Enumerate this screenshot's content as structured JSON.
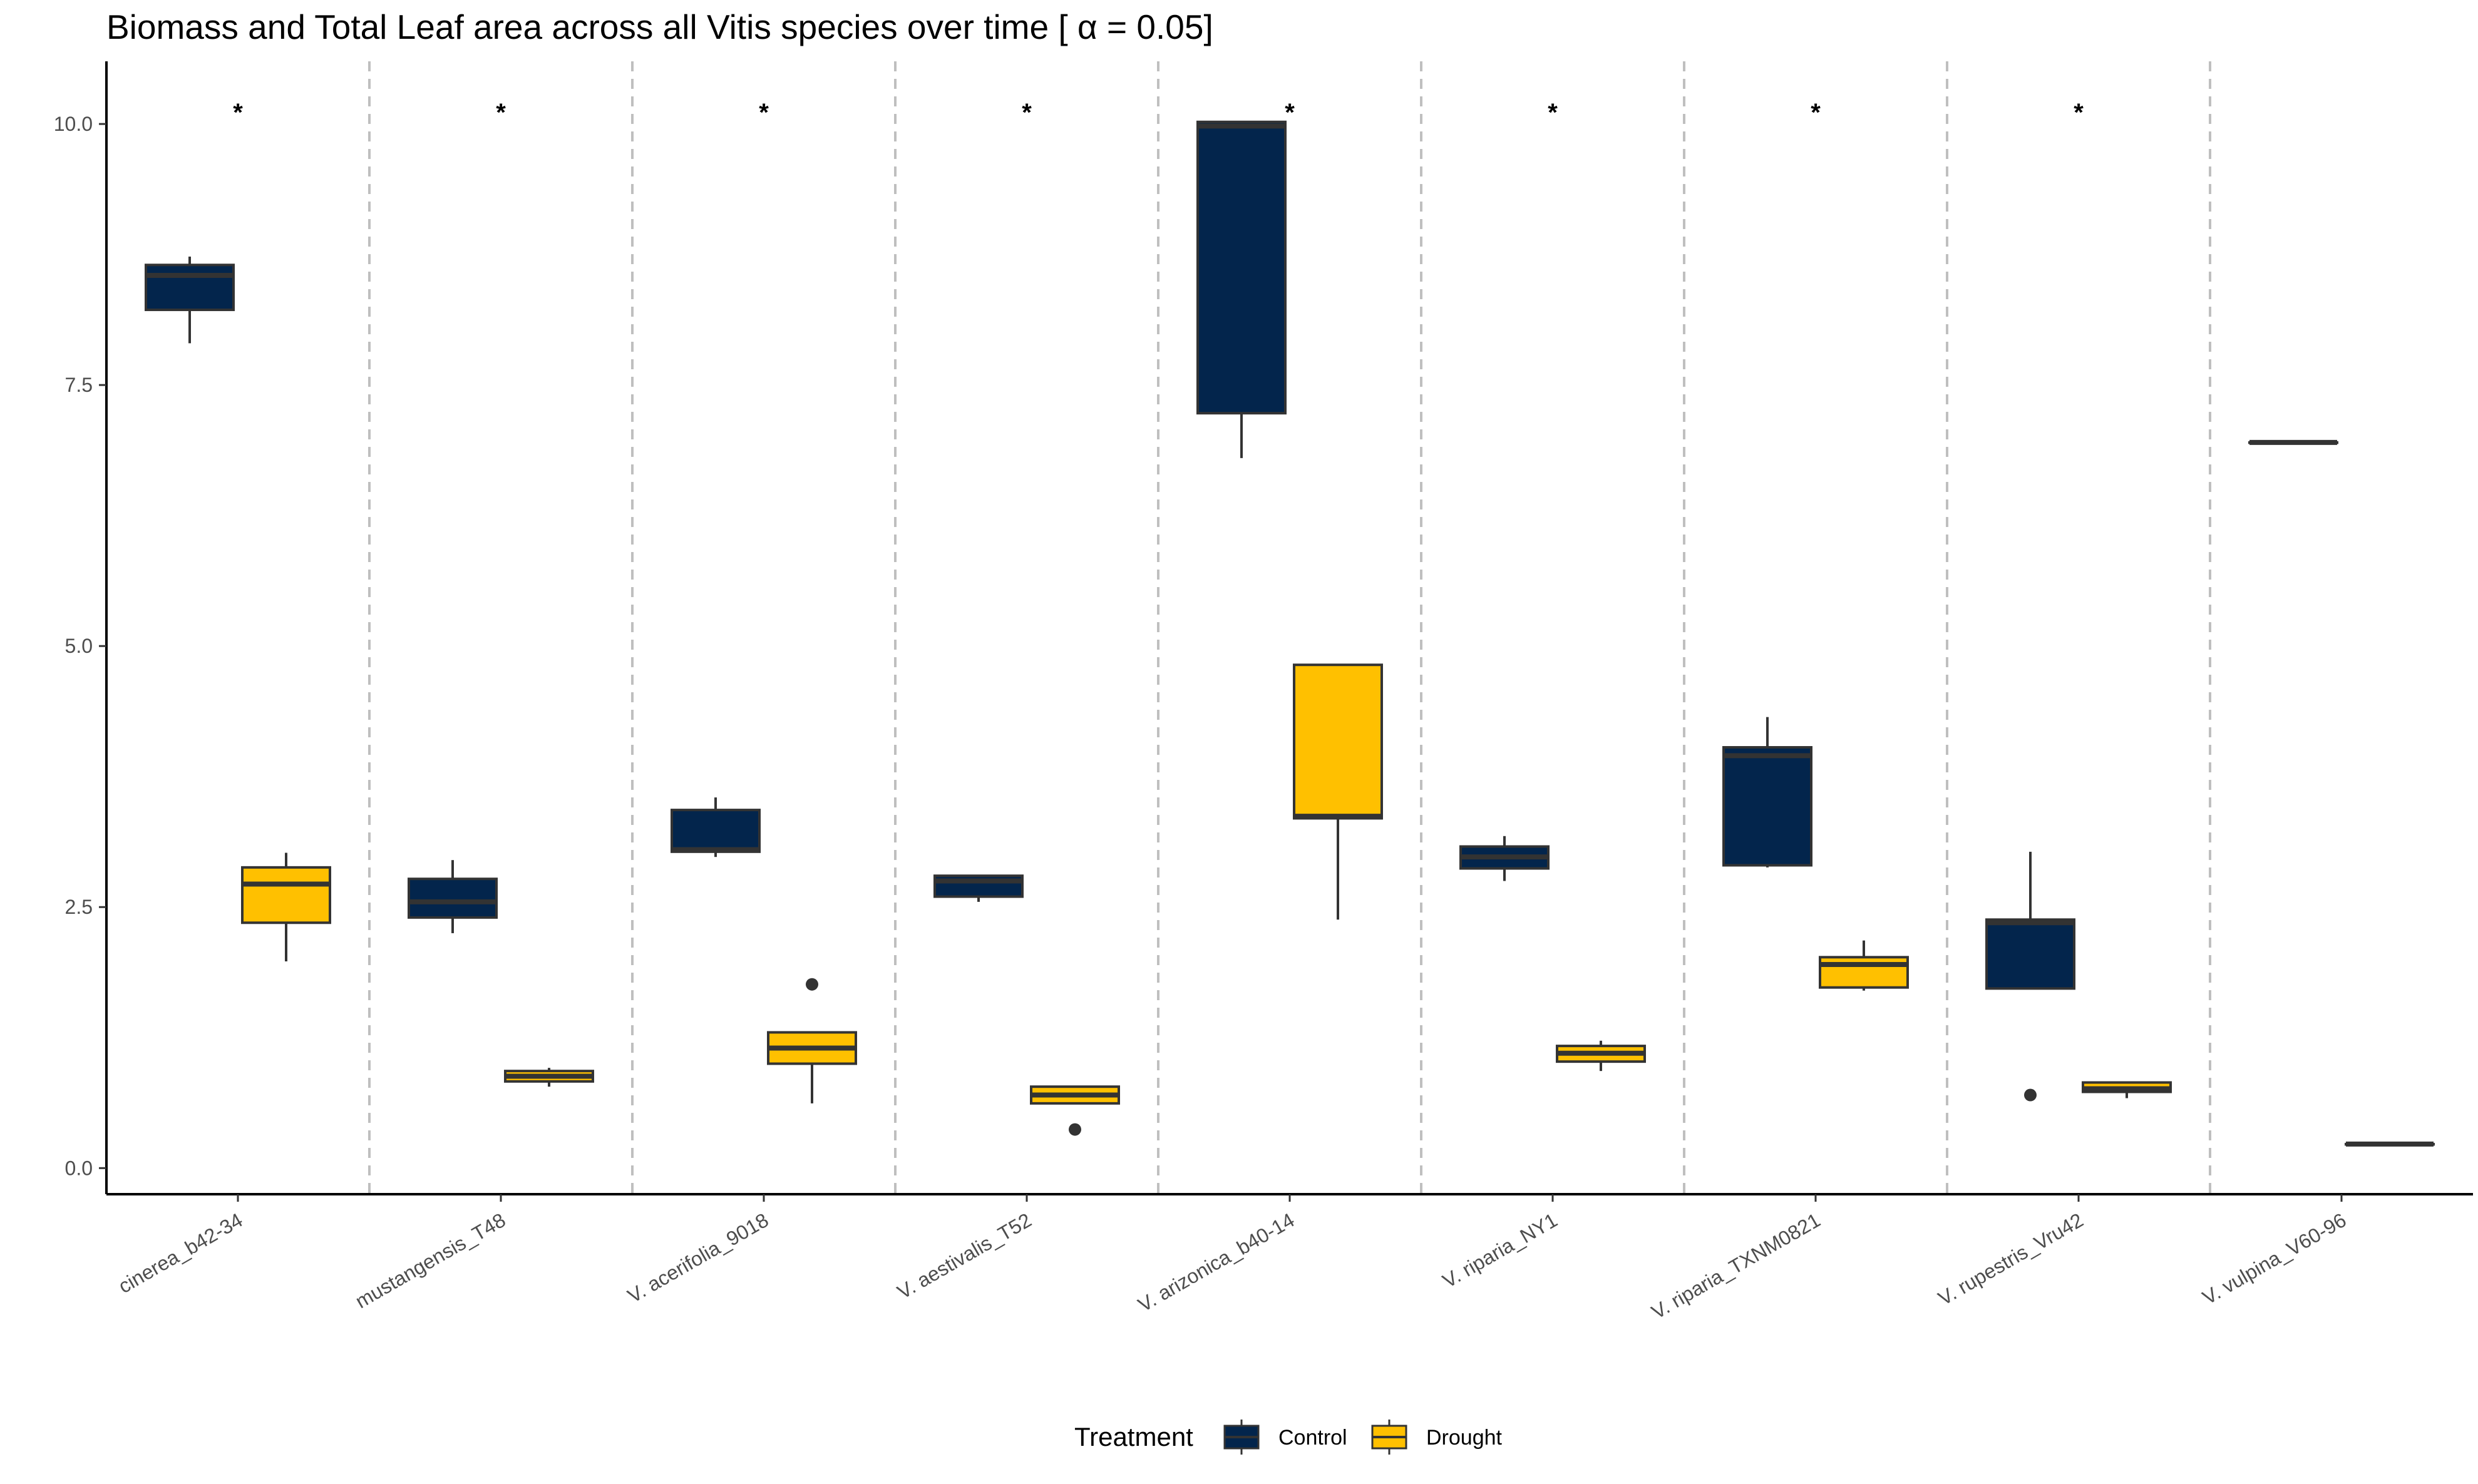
{
  "chart_data": {
    "type": "boxplot",
    "title": "Biomass and Total Leaf area across all Vitis species over time [ α = 0.05]",
    "xlabel": "",
    "ylabel": "",
    "ylim": [
      -0.25,
      10.6
    ],
    "yticks": [
      0.0,
      2.5,
      5.0,
      7.5,
      10.0
    ],
    "ytick_labels": [
      "0.0",
      "2.5",
      "5.0",
      "7.5",
      "10.0"
    ],
    "grid": false,
    "legend_position": "bottom",
    "legend_title": "Treatment",
    "colors": {
      "Control": "#03254c",
      "Drought": "#ffc000",
      "outline": "#333333",
      "divider": "#bfbfbf"
    },
    "significance_marker": "*",
    "categories": [
      {
        "label": "cinerea_b42-34",
        "significant": true,
        "boxes": [
          {
            "treatment": "Control",
            "whisker_low": 7.9,
            "q1": 8.22,
            "median": 8.55,
            "q3": 8.65,
            "whisker_high": 8.73,
            "outliers": []
          },
          {
            "treatment": "Drought",
            "whisker_low": 1.98,
            "q1": 2.35,
            "median": 2.72,
            "q3": 2.88,
            "whisker_high": 3.02,
            "outliers": []
          }
        ]
      },
      {
        "label": "mustangensis_T48",
        "significant": true,
        "boxes": [
          {
            "treatment": "Control",
            "whisker_low": 2.25,
            "q1": 2.4,
            "median": 2.55,
            "q3": 2.77,
            "whisker_high": 2.95,
            "outliers": []
          },
          {
            "treatment": "Drought",
            "whisker_low": 0.78,
            "q1": 0.83,
            "median": 0.88,
            "q3": 0.93,
            "whisker_high": 0.96,
            "outliers": []
          }
        ]
      },
      {
        "label": "V. acerifolia_9018",
        "significant": true,
        "boxes": [
          {
            "treatment": "Control",
            "whisker_low": 2.98,
            "q1": 3.03,
            "median": 3.05,
            "q3": 3.43,
            "whisker_high": 3.55,
            "outliers": []
          },
          {
            "treatment": "Drought",
            "whisker_low": 0.62,
            "q1": 1.0,
            "median": 1.15,
            "q3": 1.3,
            "whisker_high": 1.3,
            "outliers": [
              1.76
            ]
          }
        ]
      },
      {
        "label": "V. aestivalis_T52",
        "significant": true,
        "boxes": [
          {
            "treatment": "Control",
            "whisker_low": 2.55,
            "q1": 2.6,
            "median": 2.75,
            "q3": 2.8,
            "whisker_high": 2.8,
            "outliers": []
          },
          {
            "treatment": "Drought",
            "whisker_low": 0.62,
            "q1": 0.62,
            "median": 0.7,
            "q3": 0.78,
            "whisker_high": 0.78,
            "outliers": [
              0.37
            ]
          }
        ]
      },
      {
        "label": "V. arizonica_b40-14",
        "significant": true,
        "boxes": [
          {
            "treatment": "Control",
            "whisker_low": 6.8,
            "q1": 7.23,
            "median": 9.98,
            "q3": 10.02,
            "whisker_high": 10.02,
            "outliers": []
          },
          {
            "treatment": "Drought",
            "whisker_low": 2.38,
            "q1": 3.35,
            "median": 3.37,
            "q3": 4.82,
            "whisker_high": 4.82,
            "outliers": []
          }
        ]
      },
      {
        "label": "V. riparia_NY1",
        "significant": true,
        "boxes": [
          {
            "treatment": "Control",
            "whisker_low": 2.75,
            "q1": 2.87,
            "median": 2.98,
            "q3": 3.08,
            "whisker_high": 3.18,
            "outliers": []
          },
          {
            "treatment": "Drought",
            "whisker_low": 0.93,
            "q1": 1.02,
            "median": 1.1,
            "q3": 1.17,
            "whisker_high": 1.22,
            "outliers": []
          }
        ]
      },
      {
        "label": "V. riparia_TXNM0821",
        "significant": true,
        "boxes": [
          {
            "treatment": "Control",
            "whisker_low": 2.88,
            "q1": 2.9,
            "median": 3.95,
            "q3": 4.03,
            "whisker_high": 4.32,
            "outliers": []
          },
          {
            "treatment": "Drought",
            "whisker_low": 1.7,
            "q1": 1.73,
            "median": 1.95,
            "q3": 2.02,
            "whisker_high": 2.18,
            "outliers": []
          }
        ]
      },
      {
        "label": "V. rupestris_Vru42",
        "significant": true,
        "boxes": [
          {
            "treatment": "Control",
            "whisker_low": 1.72,
            "q1": 1.72,
            "median": 2.35,
            "q3": 2.38,
            "whisker_high": 3.03,
            "outliers": [
              0.7
            ]
          },
          {
            "treatment": "Drought",
            "whisker_low": 0.67,
            "q1": 0.73,
            "median": 0.76,
            "q3": 0.82,
            "whisker_high": 0.82,
            "outliers": []
          }
        ]
      },
      {
        "label": "V. vulpina_V60-96",
        "significant": false,
        "boxes": [
          {
            "treatment": "Control",
            "whisker_low": 6.95,
            "q1": 6.95,
            "median": 6.95,
            "q3": 6.95,
            "whisker_high": 6.95,
            "outliers": []
          },
          {
            "treatment": "Drought",
            "whisker_low": 0.23,
            "q1": 0.23,
            "median": 0.23,
            "q3": 0.23,
            "whisker_high": 0.23,
            "outliers": []
          }
        ]
      }
    ],
    "legend": [
      {
        "label": "Control",
        "color": "#03254c"
      },
      {
        "label": "Drought",
        "color": "#ffc000"
      }
    ]
  }
}
